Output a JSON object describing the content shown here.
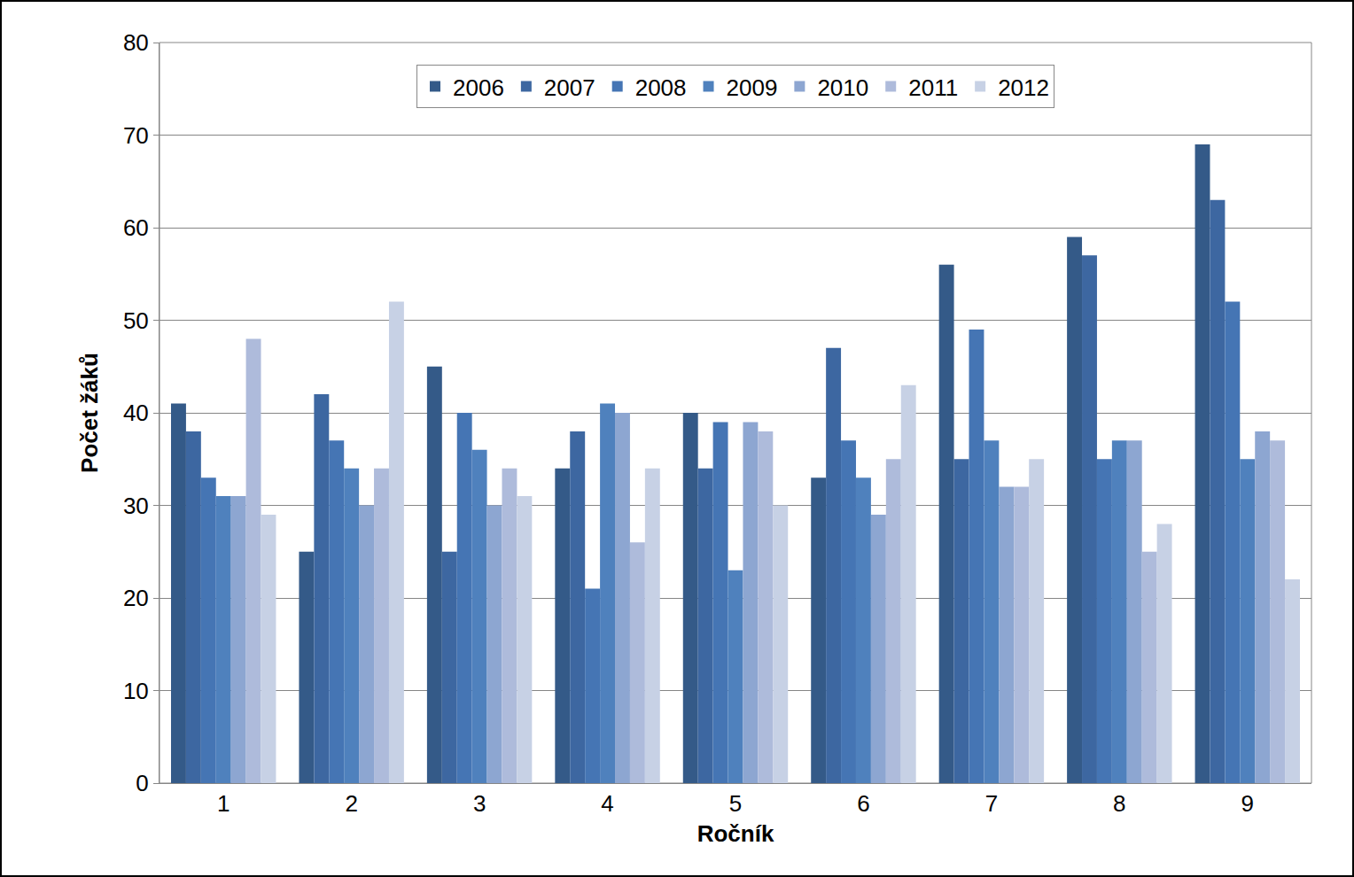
{
  "chart_data": {
    "type": "bar",
    "x_label": "Ročník",
    "y_label": "Počet žáků",
    "categories": [
      "1",
      "2",
      "3",
      "4",
      "5",
      "6",
      "7",
      "8",
      "9"
    ],
    "series": [
      {
        "name": "2006",
        "color": "#345a88",
        "values": [
          41,
          25,
          45,
          34,
          40,
          33,
          56,
          59,
          69
        ]
      },
      {
        "name": "2007",
        "color": "#3d67a1",
        "values": [
          38,
          42,
          25,
          38,
          34,
          47,
          35,
          57,
          63
        ]
      },
      {
        "name": "2008",
        "color": "#4575b4",
        "values": [
          33,
          37,
          40,
          21,
          39,
          37,
          49,
          35,
          52
        ]
      },
      {
        "name": "2009",
        "color": "#4f81bd",
        "values": [
          31,
          34,
          36,
          41,
          23,
          33,
          37,
          37,
          35
        ]
      },
      {
        "name": "2010",
        "color": "#8da6d1",
        "values": [
          31,
          30,
          30,
          40,
          39,
          29,
          32,
          37,
          38
        ]
      },
      {
        "name": "2011",
        "color": "#aebbdb",
        "values": [
          48,
          34,
          34,
          26,
          38,
          35,
          32,
          25,
          37
        ]
      },
      {
        "name": "2012",
        "color": "#c7d1e5",
        "values": [
          29,
          52,
          31,
          34,
          30,
          43,
          35,
          28,
          22
        ]
      }
    ],
    "ylim": [
      0,
      80
    ],
    "yticks": [
      0,
      10,
      20,
      30,
      40,
      50,
      60,
      70,
      80
    ],
    "grid": true,
    "legend": "top"
  }
}
